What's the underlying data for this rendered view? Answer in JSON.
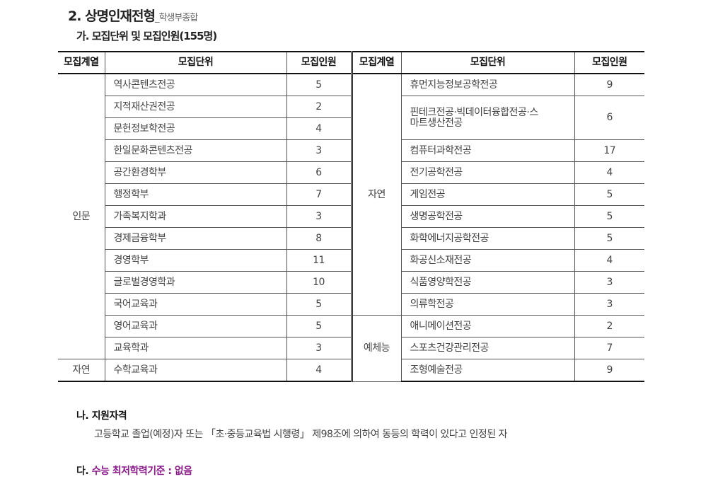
{
  "heading": {
    "number": "2.",
    "title": "상명인재전형",
    "suffix": "_학생부종합"
  },
  "section_a": "가. 모집단위 및 모집인원(155명)",
  "table": {
    "headers": [
      "모집계열",
      "모집단위",
      "모집인원",
      "모집계열",
      "모집단위",
      "모집인원"
    ],
    "left": [
      {
        "group": "인문",
        "span": 13,
        "rows": [
          [
            "역사콘텐츠전공",
            "5"
          ],
          [
            "지적재산권전공",
            "2"
          ],
          [
            "문헌정보학전공",
            "4"
          ],
          [
            "한일문화콘텐츠전공",
            "3"
          ],
          [
            "공간환경학부",
            "6"
          ],
          [
            "행정학부",
            "7"
          ],
          [
            "가족복지학과",
            "3"
          ],
          [
            "경제금융학부",
            "8"
          ],
          [
            "경영학부",
            "11"
          ],
          [
            "글로벌경영학과",
            "10"
          ],
          [
            "국어교육과",
            "5"
          ],
          [
            "영어교육과",
            "5"
          ],
          [
            "교육학과",
            "3"
          ]
        ]
      },
      {
        "group": "자연",
        "span": 1,
        "rows": [
          [
            "수학교육과",
            "4"
          ]
        ]
      }
    ],
    "right": [
      {
        "group": "자연",
        "span": 11,
        "rows": [
          [
            "휴먼지능정보공학전공",
            "9",
            1
          ],
          [
            "핀테크전공·빅데이터융합전공·스마트생산전공",
            "6",
            2
          ],
          [
            "컴퓨터과학전공",
            "17",
            1
          ],
          [
            "전기공학전공",
            "4",
            1
          ],
          [
            "게임전공",
            "5",
            1
          ],
          [
            "생명공학전공",
            "5",
            1
          ],
          [
            "화학에너지공학전공",
            "5",
            1
          ],
          [
            "화공신소재전공",
            "4",
            1
          ],
          [
            "식품영양학전공",
            "3",
            1
          ],
          [
            "의류학전공",
            "3",
            1
          ]
        ]
      },
      {
        "group": "예체능",
        "span": 3,
        "rows": [
          [
            "애니메이션전공",
            "2",
            1
          ],
          [
            "스포츠건강관리전공",
            "7",
            1
          ],
          [
            "조형예술전공",
            "9",
            1
          ]
        ]
      }
    ]
  },
  "section_b": {
    "title": "나. 지원자격",
    "text": "고등학교 졸업(예정)자 또는 「초·중등교육법 시행령」 제98조에 의하여 동등의 학력이 있다고 인정된 자"
  },
  "section_c": {
    "prefix": "다.",
    "text": "수능 최저학력기준 : 없음",
    "color": "#8b1a8b"
  }
}
